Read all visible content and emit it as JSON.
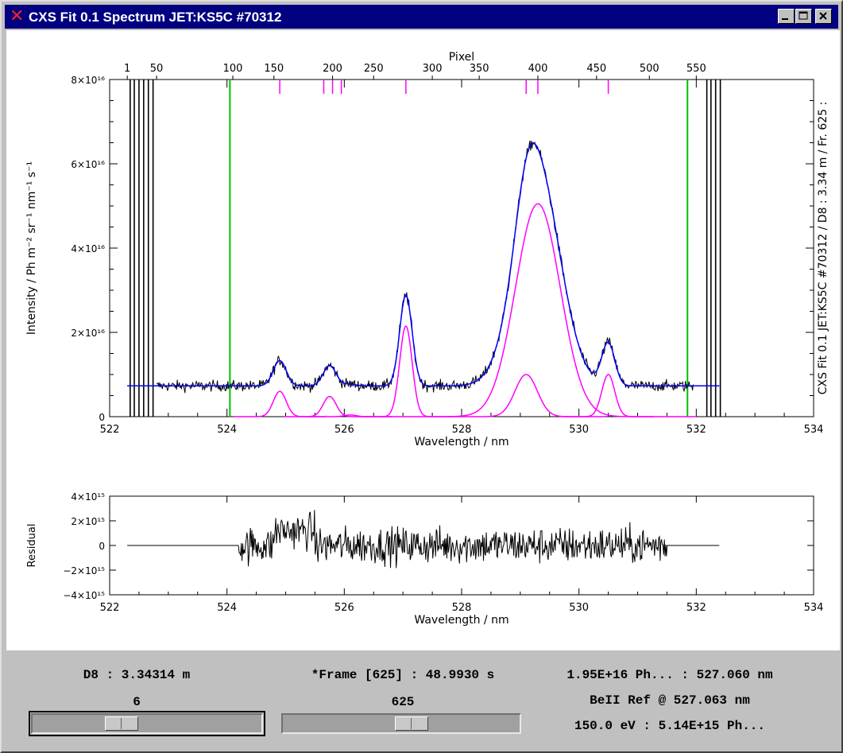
{
  "window": {
    "title": "CXS Fit 0.1 Spectrum JET:KS5C #70312",
    "icon": "x-logo-icon"
  },
  "status": {
    "distance": "D8 : 3.34314 m",
    "frame": "*Frame [625] : 48.9930 s",
    "line_info": "1.95E+16 Ph... : 527.060 nm",
    "ref_info": "BeII Ref @ 527.063 nm",
    "temp_info": "150.0 eV : 5.14E+15 Ph..."
  },
  "sliders": {
    "distance": {
      "value": "6",
      "position": 0.37
    },
    "frame": {
      "value": "625",
      "position": 0.55
    }
  },
  "chart_data": [
    {
      "type": "line",
      "xlabel": "Wavelength / nm",
      "ylabel": "Intensity / Ph m⁻² sr⁻¹ nm⁻¹ s⁻¹",
      "xlim": [
        522,
        534
      ],
      "ylim": [
        0,
        8e+16
      ],
      "x_ticks": [
        "522",
        "524",
        "526",
        "528",
        "530",
        "532",
        "534"
      ],
      "y_ticks": [
        "0",
        "2×10¹⁶",
        "4×10¹⁶",
        "6×10¹⁶",
        "8×10¹⁶"
      ],
      "top_axis": {
        "label": "Pixel",
        "ticks": [
          "1",
          "50",
          "100",
          "150",
          "200",
          "250",
          "300",
          "350",
          "400",
          "450",
          "500",
          "550"
        ],
        "wavelengths": [
          522.3,
          522.8,
          524.1,
          524.8,
          525.8,
          526.5,
          527.5,
          528.3,
          529.3,
          530.3,
          531.2,
          532.0
        ]
      },
      "right_label": "CXS Fit 0.1  JET:KS5C #70312 / D8 : 3.34 m / Fr. 625 :",
      "baseline": 7300000000000000.0,
      "fit_range": [
        522.3,
        532.4
      ],
      "window_lines": [
        524.05,
        531.85
      ],
      "peaks": [
        {
          "center": 524.9,
          "fwhm": 0.26,
          "amplitude": 6000000000000000.0
        },
        {
          "center": 525.75,
          "fwhm": 0.26,
          "amplitude": 4800000000000000.0
        },
        {
          "center": 526.1,
          "fwhm": 0.24,
          "amplitude": 400000000000000.0
        },
        {
          "center": 527.05,
          "fwhm": 0.25,
          "amplitude": 2.15e+16
        },
        {
          "center": 529.1,
          "fwhm": 0.45,
          "amplitude": 1e+16
        },
        {
          "center": 529.3,
          "fwhm": 0.9,
          "amplitude": 5.05e+16
        },
        {
          "center": 530.5,
          "fwhm": 0.26,
          "amplitude": 1e+16
        }
      ],
      "top_markers": [
        524.9,
        525.65,
        525.8,
        525.95,
        527.05,
        529.1,
        529.3,
        530.5
      ]
    },
    {
      "type": "line",
      "xlabel": "Wavelength / nm",
      "ylabel": "Residual",
      "xlim": [
        522,
        534
      ],
      "ylim": [
        -4000000000000000.0,
        4000000000000000.0
      ],
      "x_ticks": [
        "522",
        "524",
        "526",
        "528",
        "530",
        "532",
        "534"
      ],
      "y_ticks": [
        "−4×10¹⁵",
        "−2×10¹⁵",
        "0",
        "2×10¹⁵",
        "4×10¹⁵"
      ],
      "noise_range": [
        524.2,
        531.5
      ],
      "noise_amplitude": 1400000000000000.0
    }
  ]
}
